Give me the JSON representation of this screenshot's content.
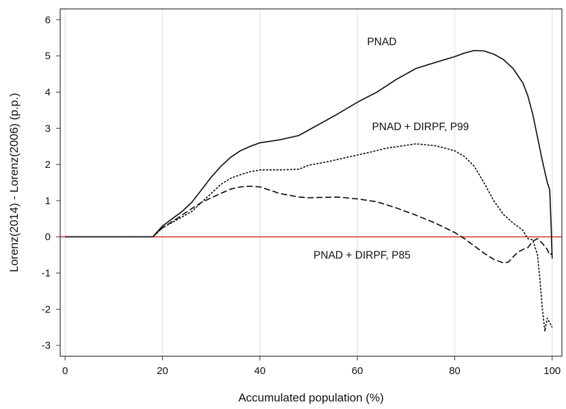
{
  "chart_data": {
    "type": "line",
    "title": "",
    "xlabel": "Accumulated population (%)",
    "ylabel": "Lorenz(2014) - Lorenz(2006) (p.p.)",
    "xlim": [
      -1,
      102
    ],
    "ylim": [
      -3.3,
      6.3
    ],
    "xticks": [
      0,
      20,
      40,
      60,
      80,
      100
    ],
    "yticks": [
      -3,
      -2,
      -1,
      0,
      1,
      2,
      3,
      4,
      5,
      6
    ],
    "grid": {
      "x": true,
      "y": false,
      "color": "#e4e4e4"
    },
    "reference_line": {
      "y": 0,
      "color": "#d9412f"
    },
    "series": [
      {
        "name": "PNAD",
        "label_anchor": [
          62,
          5.3
        ],
        "style": "solid",
        "color": "#111111",
        "points": [
          [
            0,
            0
          ],
          [
            18,
            0
          ],
          [
            20,
            0.3
          ],
          [
            22,
            0.5
          ],
          [
            24,
            0.7
          ],
          [
            26,
            0.95
          ],
          [
            28,
            1.3
          ],
          [
            30,
            1.65
          ],
          [
            32,
            1.95
          ],
          [
            34,
            2.2
          ],
          [
            36,
            2.38
          ],
          [
            38,
            2.5
          ],
          [
            40,
            2.6
          ],
          [
            44,
            2.68
          ],
          [
            48,
            2.8
          ],
          [
            50,
            2.95
          ],
          [
            52,
            3.1
          ],
          [
            56,
            3.4
          ],
          [
            60,
            3.72
          ],
          [
            64,
            4.0
          ],
          [
            68,
            4.35
          ],
          [
            72,
            4.65
          ],
          [
            76,
            4.82
          ],
          [
            80,
            4.98
          ],
          [
            82,
            5.08
          ],
          [
            84,
            5.15
          ],
          [
            86,
            5.14
          ],
          [
            88,
            5.05
          ],
          [
            90,
            4.9
          ],
          [
            92,
            4.65
          ],
          [
            94,
            4.25
          ],
          [
            95,
            3.9
          ],
          [
            96,
            3.4
          ],
          [
            97,
            2.75
          ],
          [
            98,
            2.1
          ],
          [
            99,
            1.5
          ],
          [
            99.5,
            1.3
          ],
          [
            99.8,
            0.3
          ],
          [
            100,
            -0.6
          ]
        ]
      },
      {
        "name": "PNAD + DIRPF, P99",
        "label_anchor": [
          63,
          2.95
        ],
        "style": "dotted",
        "color": "#111111",
        "points": [
          [
            0,
            0
          ],
          [
            18,
            0
          ],
          [
            20,
            0.25
          ],
          [
            22,
            0.4
          ],
          [
            24,
            0.55
          ],
          [
            26,
            0.7
          ],
          [
            28,
            0.95
          ],
          [
            30,
            1.2
          ],
          [
            32,
            1.45
          ],
          [
            34,
            1.62
          ],
          [
            36,
            1.72
          ],
          [
            38,
            1.8
          ],
          [
            40,
            1.85
          ],
          [
            44,
            1.85
          ],
          [
            48,
            1.87
          ],
          [
            50,
            1.98
          ],
          [
            54,
            2.08
          ],
          [
            58,
            2.2
          ],
          [
            62,
            2.32
          ],
          [
            66,
            2.45
          ],
          [
            70,
            2.53
          ],
          [
            72,
            2.57
          ],
          [
            76,
            2.52
          ],
          [
            80,
            2.38
          ],
          [
            82,
            2.22
          ],
          [
            84,
            1.95
          ],
          [
            86,
            1.5
          ],
          [
            88,
            1.0
          ],
          [
            90,
            0.62
          ],
          [
            92,
            0.38
          ],
          [
            94,
            0.18
          ],
          [
            95,
            -0.05
          ],
          [
            96,
            -0.08
          ],
          [
            97,
            -0.5
          ],
          [
            97.5,
            -1.2
          ],
          [
            98,
            -2.0
          ],
          [
            98.5,
            -2.6
          ],
          [
            99,
            -2.25
          ],
          [
            100,
            -2.5
          ]
        ]
      },
      {
        "name": "PNAD + DIRPF, P85",
        "label_anchor": [
          51,
          -0.6
        ],
        "style": "dashed",
        "color": "#111111",
        "points": [
          [
            0,
            0
          ],
          [
            18,
            0
          ],
          [
            20,
            0.25
          ],
          [
            22,
            0.42
          ],
          [
            24,
            0.6
          ],
          [
            26,
            0.78
          ],
          [
            28,
            0.95
          ],
          [
            30,
            1.08
          ],
          [
            32,
            1.2
          ],
          [
            34,
            1.32
          ],
          [
            36,
            1.38
          ],
          [
            38,
            1.4
          ],
          [
            40,
            1.38
          ],
          [
            44,
            1.2
          ],
          [
            48,
            1.1
          ],
          [
            50,
            1.08
          ],
          [
            56,
            1.1
          ],
          [
            60,
            1.05
          ],
          [
            64,
            0.97
          ],
          [
            68,
            0.8
          ],
          [
            72,
            0.6
          ],
          [
            76,
            0.38
          ],
          [
            80,
            0.12
          ],
          [
            82,
            -0.05
          ],
          [
            84,
            -0.25
          ],
          [
            86,
            -0.45
          ],
          [
            88,
            -0.62
          ],
          [
            90,
            -0.72
          ],
          [
            91,
            -0.7
          ],
          [
            92,
            -0.55
          ],
          [
            93,
            -0.42
          ],
          [
            94,
            -0.35
          ],
          [
            95,
            -0.3
          ],
          [
            96,
            -0.12
          ],
          [
            97,
            -0.05
          ],
          [
            98,
            -0.18
          ],
          [
            99,
            -0.35
          ],
          [
            99.5,
            -0.5
          ],
          [
            100,
            -0.45
          ]
        ]
      }
    ]
  }
}
